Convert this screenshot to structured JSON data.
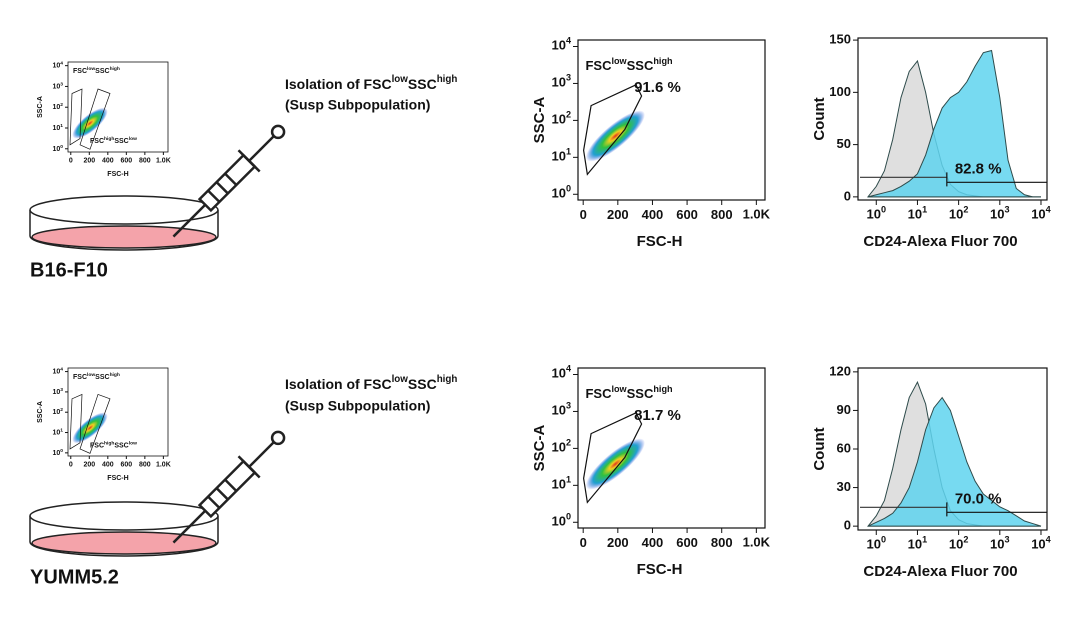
{
  "panels": [
    {
      "cell_line": "B16-F10",
      "isolation": {
        "parts": [
          "Isolation of FSC",
          "low",
          "SSC",
          "high"
        ],
        "line2": "(Susp Subpopulation)"
      }
    },
    {
      "cell_line": "YUMM5.2",
      "isolation": {
        "parts": [
          "Isolation of FSC",
          "low",
          "SSC",
          "high"
        ],
        "line2": "(Susp Subpopulation)"
      }
    }
  ],
  "chart_data": [
    {
      "type": "scatter",
      "x_label": "FSC-H",
      "y_label": "SSC-A",
      "xlim": [
        -30,
        1050
      ],
      "ylim": [
        0.7,
        15000
      ],
      "y_log": true,
      "xticks": [
        0,
        200,
        400,
        600,
        800,
        {
          "value": 1000,
          "label": "1.0K"
        }
      ],
      "yticks": [
        {
          "value": 1,
          "label": "10",
          "sup": "0"
        },
        {
          "value": 10,
          "label": "10",
          "sup": "1"
        },
        {
          "value": 100,
          "label": "10",
          "sup": "2"
        },
        {
          "value": 1000,
          "label": "10",
          "sup": "3"
        },
        {
          "value": 10000,
          "label": "10",
          "sup": "4"
        }
      ],
      "gates": [
        {
          "label": [
            "FSC",
            "low",
            "SSC",
            "high"
          ]
        },
        {
          "label": [
            "FSC",
            "high",
            "SSC",
            "low"
          ]
        }
      ]
    },
    {
      "type": "scatter",
      "x_label": "FSC-H",
      "y_label": "SSC-A",
      "xlim": [
        -30,
        1050
      ],
      "ylim": [
        0.7,
        15000
      ],
      "y_log": true,
      "xticks": [
        0,
        200,
        400,
        600,
        800,
        {
          "value": 1000,
          "label": "1.0K"
        }
      ],
      "yticks": [
        {
          "value": 1,
          "label": "10",
          "sup": "0"
        },
        {
          "value": 10,
          "label": "10",
          "sup": "1"
        },
        {
          "value": 100,
          "label": "10",
          "sup": "2"
        },
        {
          "value": 1000,
          "label": "10",
          "sup": "3"
        },
        {
          "value": 10000,
          "label": "10",
          "sup": "4"
        }
      ],
      "gates": [
        {
          "label": [
            "FSC",
            "low",
            "SSC",
            "high"
          ],
          "annotation": "91.6 %"
        }
      ]
    },
    {
      "type": "area",
      "x_label": "CD24-Alexa Fluor 700",
      "y_label": "Count",
      "x_log": true,
      "xlim": [
        0.36,
        14000
      ],
      "ylim": [
        -3,
        152
      ],
      "xticks": [
        {
          "value": 1,
          "label": "10",
          "sup": "0"
        },
        {
          "value": 10,
          "label": "10",
          "sup": "1"
        },
        {
          "value": 100,
          "label": "10",
          "sup": "2"
        },
        {
          "value": 1000,
          "label": "10",
          "sup": "3"
        },
        {
          "value": 10000,
          "label": "10",
          "sup": "4"
        }
      ],
      "yticks": [
        0,
        50,
        100,
        150
      ],
      "x": [
        0.63,
        1,
        1.58,
        2.51,
        3.98,
        6.31,
        10,
        15.8,
        25.1,
        39.8,
        63.1,
        100,
        158,
        251,
        398,
        631,
        1000,
        1585,
        2512,
        3981,
        6310,
        10000
      ],
      "series": [
        {
          "color": "#d9d9d9",
          "values": [
            0,
            10,
            25,
            55,
            95,
            120,
            130,
            100,
            60,
            30,
            12,
            5,
            2,
            1,
            0,
            0,
            0,
            0,
            0,
            0,
            0,
            0
          ]
        },
        {
          "color": "#5fd3ef",
          "values": [
            0,
            2,
            4,
            6,
            10,
            15,
            22,
            40,
            65,
            85,
            95,
            100,
            110,
            125,
            138,
            140,
            95,
            35,
            8,
            2,
            0,
            0
          ]
        }
      ],
      "annotation": "82.8 %"
    },
    {
      "type": "scatter",
      "x_label": "FSC-H",
      "y_label": "SSC-A",
      "xlim": [
        -30,
        1050
      ],
      "ylim": [
        0.7,
        15000
      ],
      "y_log": true,
      "xticks": [
        0,
        200,
        400,
        600,
        800,
        {
          "value": 1000,
          "label": "1.0K"
        }
      ],
      "yticks": [
        {
          "value": 1,
          "label": "10",
          "sup": "0"
        },
        {
          "value": 10,
          "label": "10",
          "sup": "1"
        },
        {
          "value": 100,
          "label": "10",
          "sup": "2"
        },
        {
          "value": 1000,
          "label": "10",
          "sup": "3"
        },
        {
          "value": 10000,
          "label": "10",
          "sup": "4"
        }
      ],
      "gates": [
        {
          "label": [
            "FSC",
            "low",
            "SSC",
            "high"
          ]
        },
        {
          "label": [
            "FSC",
            "high",
            "SSC",
            "low"
          ]
        }
      ]
    },
    {
      "type": "scatter",
      "x_label": "FSC-H",
      "y_label": "SSC-A",
      "xlim": [
        -30,
        1050
      ],
      "ylim": [
        0.7,
        15000
      ],
      "y_log": true,
      "xticks": [
        0,
        200,
        400,
        600,
        800,
        {
          "value": 1000,
          "label": "1.0K"
        }
      ],
      "yticks": [
        {
          "value": 1,
          "label": "10",
          "sup": "0"
        },
        {
          "value": 10,
          "label": "10",
          "sup": "1"
        },
        {
          "value": 100,
          "label": "10",
          "sup": "2"
        },
        {
          "value": 1000,
          "label": "10",
          "sup": "3"
        },
        {
          "value": 10000,
          "label": "10",
          "sup": "4"
        }
      ],
      "gates": [
        {
          "label": [
            "FSC",
            "low",
            "SSC",
            "high"
          ],
          "annotation": "81.7 %"
        }
      ]
    },
    {
      "type": "area",
      "x_label": "CD24-Alexa Fluor 700",
      "y_label": "Count",
      "x_log": true,
      "xlim": [
        0.36,
        14000
      ],
      "ylim": [
        -3,
        123
      ],
      "xticks": [
        {
          "value": 1,
          "label": "10",
          "sup": "0"
        },
        {
          "value": 10,
          "label": "10",
          "sup": "1"
        },
        {
          "value": 100,
          "label": "10",
          "sup": "2"
        },
        {
          "value": 1000,
          "label": "10",
          "sup": "3"
        },
        {
          "value": 10000,
          "label": "10",
          "sup": "4"
        }
      ],
      "yticks": [
        0,
        30,
        60,
        90,
        120
      ],
      "x": [
        0.63,
        1,
        1.58,
        2.51,
        3.98,
        6.31,
        10,
        15.8,
        25.1,
        39.8,
        63.1,
        100,
        158,
        251,
        398,
        631,
        1000,
        1585,
        2512,
        3981,
        6310,
        10000
      ],
      "series": [
        {
          "color": "#d9d9d9",
          "values": [
            0,
            8,
            20,
            45,
            75,
            100,
            112,
            95,
            60,
            30,
            12,
            5,
            2,
            1,
            0,
            0,
            0,
            0,
            0,
            0,
            0,
            0
          ]
        },
        {
          "color": "#5fd3ef",
          "values": [
            0,
            3,
            6,
            10,
            18,
            30,
            50,
            75,
            92,
            100,
            90,
            70,
            50,
            35,
            25,
            20,
            15,
            12,
            8,
            4,
            2,
            0
          ]
        }
      ],
      "annotation": "70.0 %"
    }
  ]
}
